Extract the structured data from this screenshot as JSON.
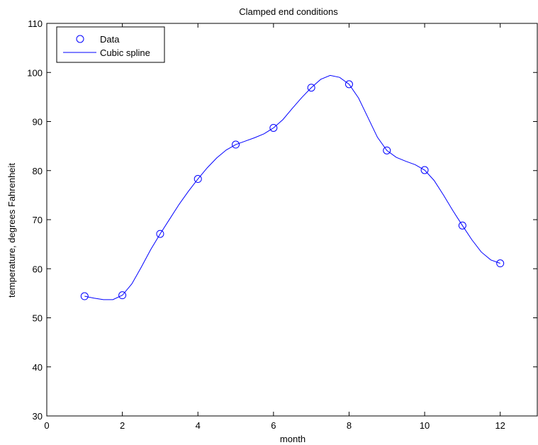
{
  "chart_data": {
    "type": "line",
    "title": "Clamped end conditions",
    "xlabel": "month",
    "ylabel": "temperature, degrees Fahrenheit",
    "xlim": [
      0,
      13
    ],
    "ylim": [
      30,
      110
    ],
    "xticks": [
      0,
      2,
      4,
      6,
      8,
      10,
      12
    ],
    "yticks": [
      30,
      40,
      50,
      60,
      70,
      80,
      90,
      100,
      110
    ],
    "grid": false,
    "legend_position": "top-left",
    "series": [
      {
        "name": "Data",
        "style": "markers",
        "marker": "circle",
        "color": "#0000ff",
        "x": [
          1,
          2,
          3,
          4,
          5,
          6,
          7,
          8,
          9,
          10,
          11,
          12
        ],
        "y": [
          54.4,
          54.6,
          67.1,
          78.3,
          85.3,
          88.7,
          96.9,
          97.6,
          84.1,
          80.1,
          68.8,
          61.1
        ]
      },
      {
        "name": "Cubic spline",
        "style": "line",
        "color": "#0000ff",
        "x": [
          1,
          1.25,
          1.5,
          1.75,
          2,
          2.25,
          2.5,
          2.75,
          3,
          3.25,
          3.5,
          3.75,
          4,
          4.25,
          4.5,
          4.75,
          5,
          5.25,
          5.5,
          5.75,
          6,
          6.25,
          6.5,
          6.75,
          7,
          7.25,
          7.5,
          7.75,
          8,
          8.25,
          8.5,
          8.75,
          9,
          9.25,
          9.5,
          9.75,
          10,
          10.25,
          10.5,
          10.75,
          11,
          11.25,
          11.5,
          11.75,
          12
        ],
        "y": [
          54.4,
          54.0,
          53.7,
          53.7,
          54.6,
          56.9,
          60.3,
          63.9,
          67.1,
          70.1,
          73.1,
          75.8,
          78.3,
          80.6,
          82.6,
          84.2,
          85.3,
          86.0,
          86.7,
          87.5,
          88.7,
          90.4,
          92.7,
          94.9,
          96.9,
          98.6,
          99.4,
          99.0,
          97.6,
          94.8,
          90.8,
          86.8,
          84.1,
          82.7,
          81.9,
          81.2,
          80.1,
          78.0,
          75.0,
          71.8,
          68.8,
          65.9,
          63.4,
          61.8,
          61.1
        ]
      }
    ]
  }
}
